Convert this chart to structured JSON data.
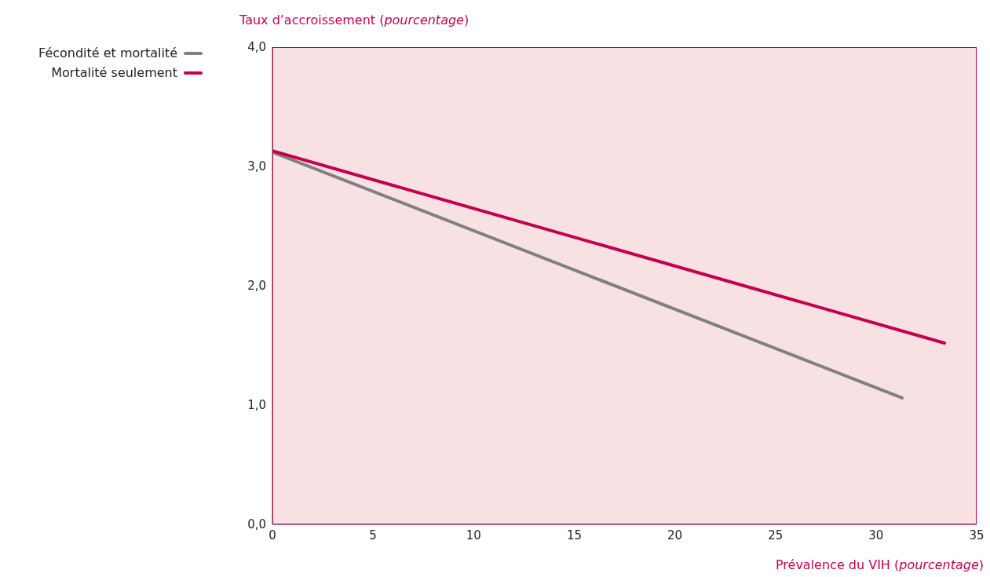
{
  "chart_data": {
    "type": "line",
    "xlabel": "Prévalence du VIH (pourcentage)",
    "ylabel": "Taux d’accroissement (pourcentage)",
    "series": [
      {
        "name": "Fécondité et mortalité",
        "color": "#808083",
        "x": [
          0,
          31.3
        ],
        "values": [
          3.12,
          1.06
        ]
      },
      {
        "name": "Mortalité seulement",
        "color": "#c3004f",
        "x": [
          0,
          33.4
        ],
        "values": [
          3.13,
          1.52
        ]
      }
    ],
    "xlim": [
      0,
      35
    ],
    "xticks": [
      0,
      5,
      10,
      15,
      20,
      25,
      30,
      35
    ],
    "ylim": [
      0,
      4
    ],
    "yticks": [
      {
        "value": 0,
        "label": "0,0"
      },
      {
        "value": 1,
        "label": "1,0"
      },
      {
        "value": 2,
        "label": "2,0"
      },
      {
        "value": 3,
        "label": "3,0"
      },
      {
        "value": 4,
        "label": "4,0"
      }
    ],
    "grid": false,
    "legend": "top left",
    "marker": "none",
    "line_style": "solid"
  }
}
